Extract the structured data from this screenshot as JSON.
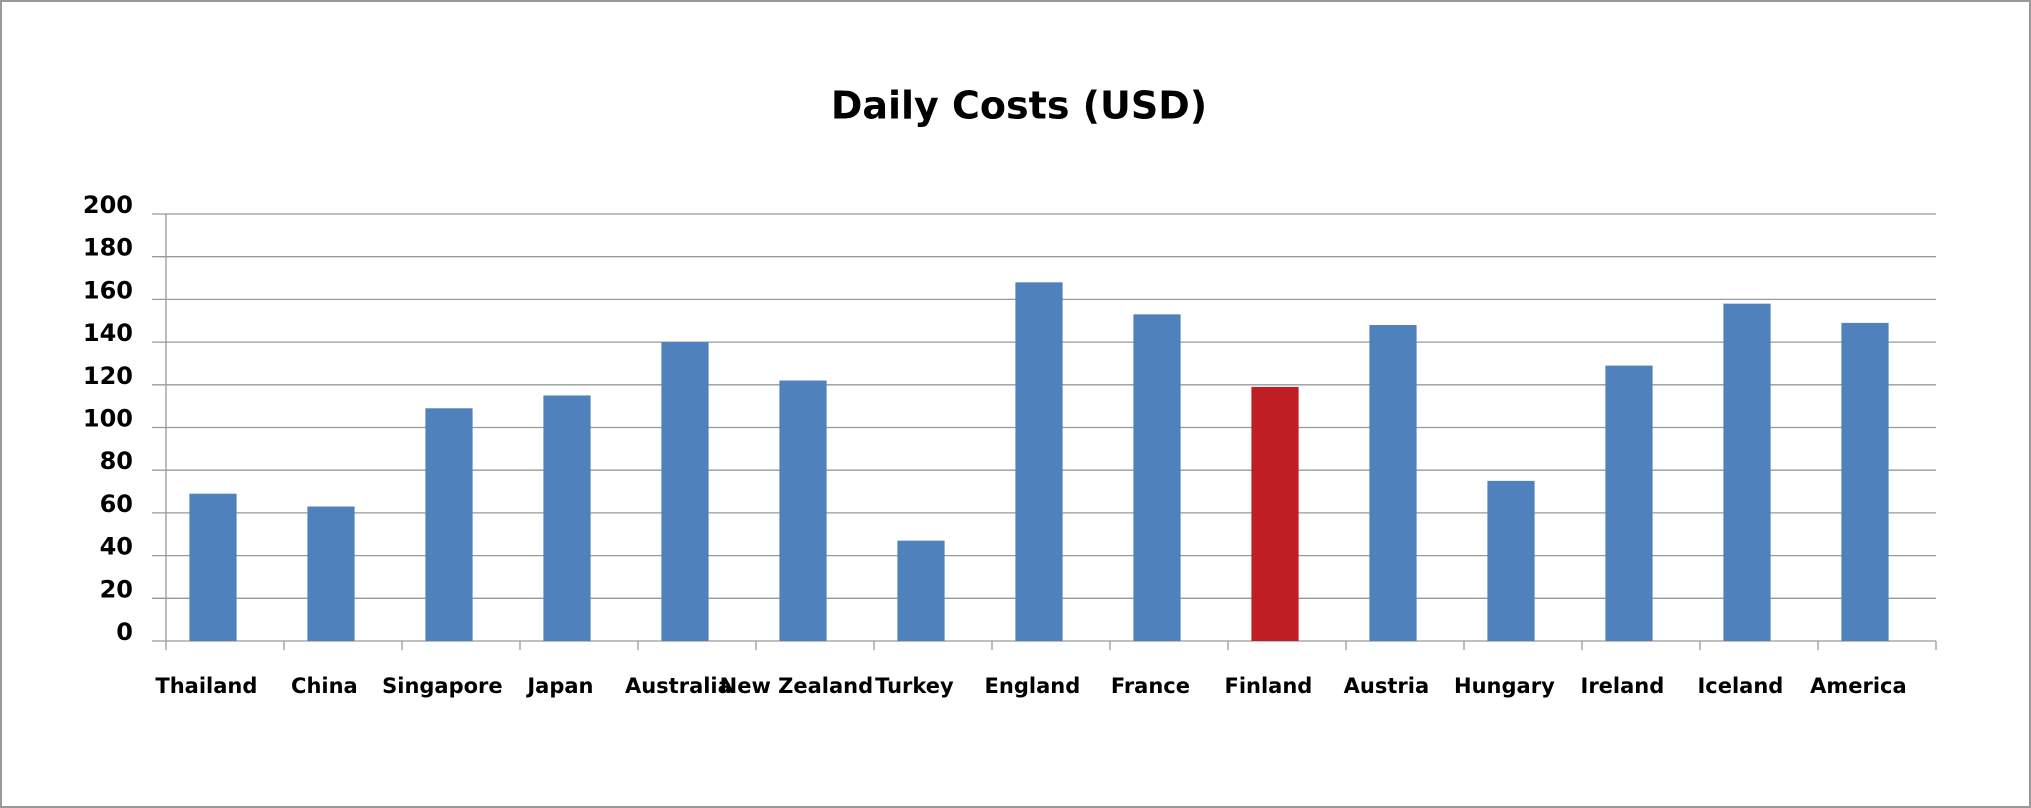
{
  "chart_data": {
    "type": "bar",
    "title": "Daily  Costs  (USD)",
    "categories": [
      "Thailand",
      "China",
      "Singapore",
      "Japan",
      "Australia",
      "New  Zealand",
      "Turkey",
      "England",
      "France",
      "Finland",
      "Austria",
      "Hungary",
      "Ireland",
      "Iceland",
      "America"
    ],
    "values": [
      69,
      63,
      109,
      115,
      140,
      122,
      47,
      168,
      153,
      119,
      148,
      75,
      129,
      158,
      149
    ],
    "colors": [
      "#4f81bd",
      "#4f81bd",
      "#4f81bd",
      "#4f81bd",
      "#4f81bd",
      "#4f81bd",
      "#4f81bd",
      "#4f81bd",
      "#4f81bd",
      "#be1e24",
      "#4f81bd",
      "#4f81bd",
      "#4f81bd",
      "#4f81bd",
      "#4f81bd"
    ],
    "ylim": [
      0,
      200
    ],
    "yticks": [
      0,
      20,
      40,
      60,
      80,
      100,
      120,
      140,
      160,
      180,
      200
    ],
    "grid": true
  }
}
